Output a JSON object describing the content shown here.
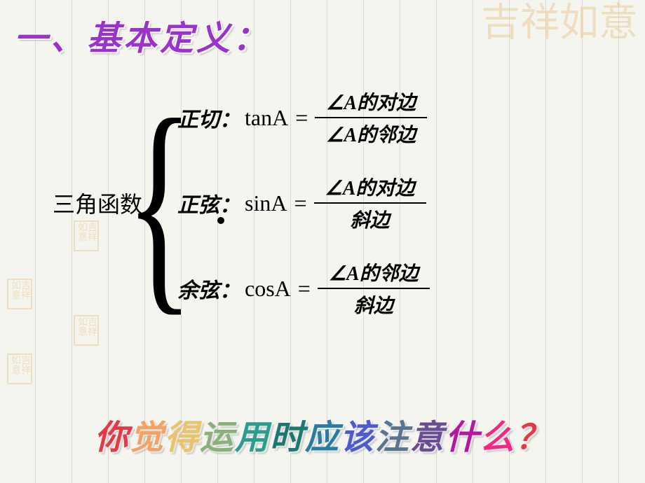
{
  "title": "一、基本定义：",
  "main_label": "三角函数",
  "formulas": [
    {
      "label": "正切：",
      "func": "tanA",
      "numerator": "∠A的对边",
      "denominator": "∠A的邻边"
    },
    {
      "label": "正弦：",
      "func": "sinA",
      "numerator": "∠A的对边",
      "denominator": "斜边"
    },
    {
      "label": "余弦：",
      "func": "cosA",
      "numerator": "∠A的邻边",
      "denominator": "斜边"
    }
  ],
  "equals_sign": "=",
  "question_text": "你觉得运用时应该注意什么？",
  "rainbow_colors": [
    "#e63946",
    "#f4a261",
    "#e9c46a",
    "#8ab17d",
    "#2a9d8f",
    "#1d7874",
    "#277da1",
    "#4d5bce",
    "#577590",
    "#6a4c93",
    "#b5179e",
    "#f72585",
    "#e63946",
    "#9d0208"
  ],
  "watermark_text": "吉祥如意",
  "background_color": "#f5f5f0",
  "title_color": "#9933cc"
}
